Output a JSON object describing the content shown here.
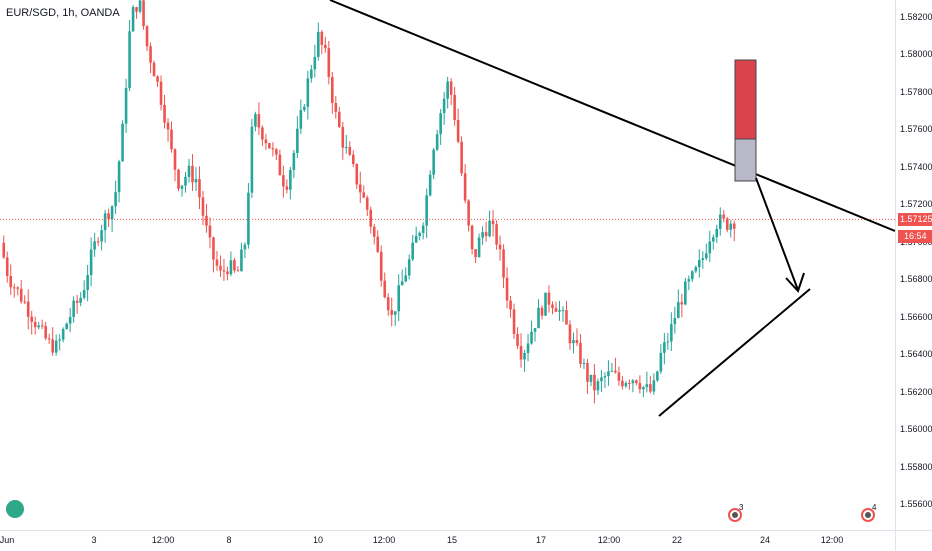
{
  "chart_data": {
    "type": "candlestick",
    "title": "EUR/SGD, 1h, OANDA",
    "price_axis": {
      "ticks": [
        "1.58200",
        "1.58000",
        "1.57800",
        "1.57600",
        "1.57400",
        "1.57200",
        "1.57000",
        "1.56800",
        "1.56600",
        "1.56400",
        "1.56200",
        "1.56000",
        "1.55800",
        "1.55600"
      ],
      "ylim": [
        1.5552,
        1.583
      ]
    },
    "time_axis": {
      "ticks": [
        "Jun",
        "3",
        "12:00",
        "8",
        "10",
        "12:00",
        "15",
        "17",
        "12:00",
        "22",
        "24",
        "12:00"
      ]
    },
    "current_price": "1.57125",
    "countdown": "16:54",
    "last_price_line": 1.57125,
    "candles": "approximate EUR/SGD 1h price path from ~1.5690 (Jun 1) rising to ~1.583 (Jun 4), ranging 1.567-1.581, drop to ~1.5605 (Jun 19-21), recovering to ~1.5720 (Jun 23)",
    "path": [
      [
        0,
        1.57
      ],
      [
        1,
        1.5682
      ],
      [
        2,
        1.5675
      ],
      [
        3,
        1.5668
      ],
      [
        4,
        1.566
      ],
      [
        5,
        1.5652
      ],
      [
        6,
        1.5646
      ],
      [
        7,
        1.5644
      ],
      [
        8,
        1.5656
      ],
      [
        9,
        1.5665
      ],
      [
        10,
        1.5672
      ],
      [
        11,
        1.569
      ],
      [
        12,
        1.5705
      ],
      [
        13,
        1.5715
      ],
      [
        14,
        1.5722
      ],
      [
        15,
        1.576
      ],
      [
        16,
        1.582
      ],
      [
        17,
        1.583
      ],
      [
        18,
        1.5805
      ],
      [
        19,
        1.579
      ],
      [
        20,
        1.5772
      ],
      [
        21,
        1.5748
      ],
      [
        22,
        1.573
      ],
      [
        23,
        1.5738
      ],
      [
        24,
        1.5734
      ],
      [
        25,
        1.5712
      ],
      [
        26,
        1.5693
      ],
      [
        27,
        1.5683
      ],
      [
        28,
        1.5688
      ],
      [
        29,
        1.5682
      ],
      [
        30,
        1.57
      ],
      [
        31,
        1.5768
      ],
      [
        32,
        1.576
      ],
      [
        33,
        1.5752
      ],
      [
        34,
        1.5742
      ],
      [
        35,
        1.573
      ],
      [
        36,
        1.5748
      ],
      [
        37,
        1.577
      ],
      [
        38,
        1.5792
      ],
      [
        39,
        1.581
      ],
      [
        40,
        1.5798
      ],
      [
        41,
        1.577
      ],
      [
        42,
        1.5754
      ],
      [
        43,
        1.5742
      ],
      [
        44,
        1.573
      ],
      [
        45,
        1.5718
      ],
      [
        46,
        1.57
      ],
      [
        47,
        1.5678
      ],
      [
        48,
        1.566
      ],
      [
        49,
        1.5675
      ],
      [
        50,
        1.5688
      ],
      [
        51,
        1.5702
      ],
      [
        52,
        1.5715
      ],
      [
        53,
        1.575
      ],
      [
        54,
        1.577
      ],
      [
        55,
        1.5787
      ],
      [
        56,
        1.576
      ],
      [
        57,
        1.572
      ],
      [
        58,
        1.569
      ],
      [
        59,
        1.5705
      ],
      [
        60,
        1.571
      ],
      [
        61,
        1.57
      ],
      [
        62,
        1.5675
      ],
      [
        63,
        1.5655
      ],
      [
        64,
        1.564
      ],
      [
        65,
        1.5652
      ],
      [
        66,
        1.5662
      ],
      [
        67,
        1.567
      ],
      [
        68,
        1.5668
      ],
      [
        69,
        1.566
      ],
      [
        70,
        1.5648
      ],
      [
        71,
        1.564
      ],
      [
        72,
        1.5628
      ],
      [
        73,
        1.5622
      ],
      [
        74,
        1.5628
      ],
      [
        75,
        1.563
      ],
      [
        76,
        1.5626
      ],
      [
        77,
        1.5628
      ],
      [
        78,
        1.5628
      ],
      [
        79,
        1.5622
      ],
      [
        80,
        1.562
      ],
      [
        81,
        1.564
      ],
      [
        82,
        1.565
      ],
      [
        83,
        1.5665
      ],
      [
        84,
        1.5675
      ],
      [
        85,
        1.5682
      ],
      [
        86,
        1.569
      ],
      [
        87,
        1.5704
      ],
      [
        88,
        1.5712
      ],
      [
        89,
        1.571
      ],
      [
        90,
        1.5712
      ]
    ]
  },
  "drawings": {
    "trendline_color": "#000000",
    "box_top_color": "#d9434b",
    "box_bottom_color": "#b9b8c8"
  },
  "events": [
    {
      "count": "3"
    },
    {
      "count": "4"
    }
  ],
  "colors": {
    "up": "#26a69a",
    "down": "#ef5350",
    "price_line": "#ef5350"
  }
}
